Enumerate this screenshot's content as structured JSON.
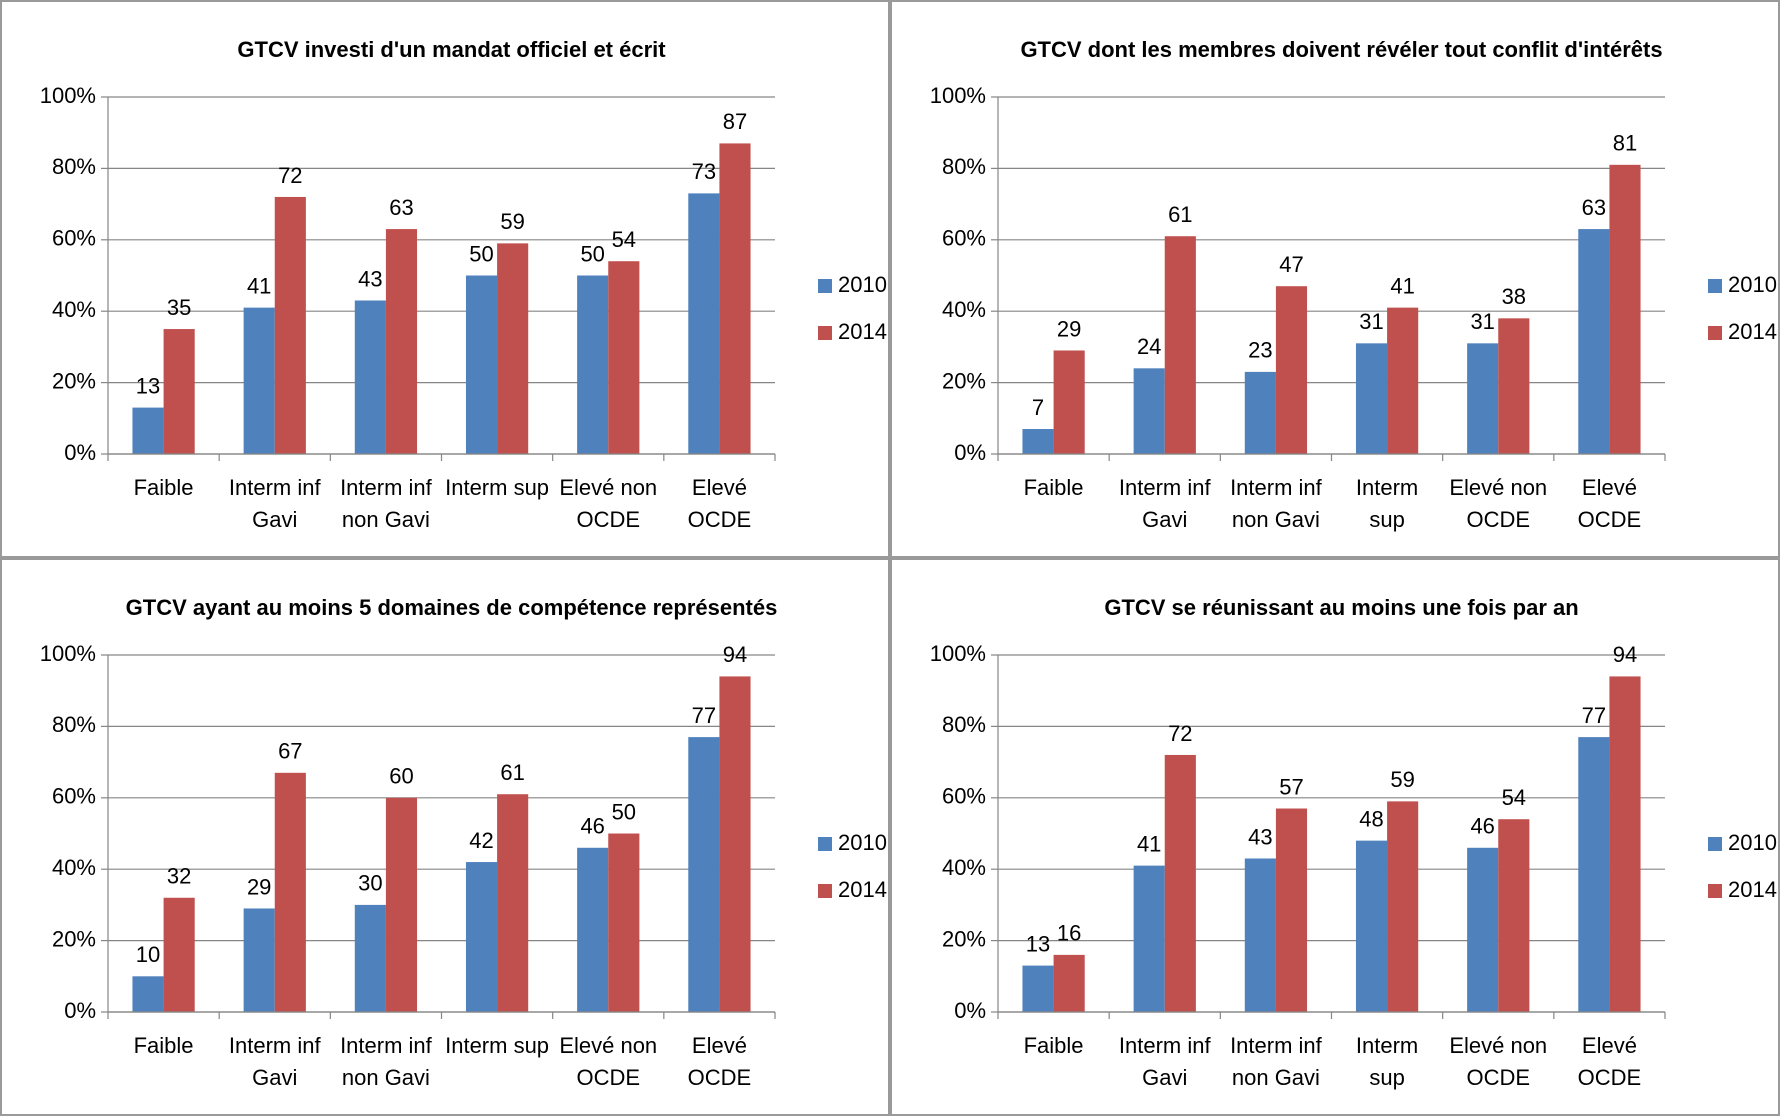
{
  "chart_data": [
    {
      "type": "bar",
      "title": "GTCV investi d'un mandat officiel et écrit",
      "categories": [
        [
          "Faible"
        ],
        [
          "Interm inf",
          "Gavi"
        ],
        [
          "Interm inf",
          "non Gavi"
        ],
        [
          "Interm sup"
        ],
        [
          "Elevé non",
          "OCDE"
        ],
        [
          "Elevé",
          "OCDE"
        ]
      ],
      "series": [
        {
          "name": "2010",
          "color": "#4f81bd",
          "values": [
            13,
            41,
            43,
            50,
            50,
            73
          ]
        },
        {
          "name": "2014",
          "color": "#c0504d",
          "values": [
            35,
            72,
            63,
            59,
            54,
            87
          ]
        }
      ],
      "ylim": [
        0,
        100
      ],
      "yticks": [
        {
          "value": 0,
          "label": "0%"
        },
        {
          "value": 20,
          "label": "20%"
        },
        {
          "value": 40,
          "label": "40%"
        },
        {
          "value": 60,
          "label": "60%"
        },
        {
          "value": 80,
          "label": "80%"
        },
        {
          "value": 100,
          "label": "100%"
        }
      ],
      "grid": true,
      "legend": "right"
    },
    {
      "type": "bar",
      "title": "GTCV dont les membres doivent révéler tout conflit d'intérêts",
      "categories": [
        [
          "Faible"
        ],
        [
          "Interm inf",
          "Gavi"
        ],
        [
          "Interm inf",
          "non Gavi"
        ],
        [
          "Interm",
          "sup"
        ],
        [
          "Elevé non",
          "OCDE"
        ],
        [
          "Elevé",
          "OCDE"
        ]
      ],
      "series": [
        {
          "name": "2010",
          "color": "#4f81bd",
          "values": [
            7,
            24,
            23,
            31,
            31,
            63
          ]
        },
        {
          "name": "2014",
          "color": "#c0504d",
          "values": [
            29,
            61,
            47,
            41,
            38,
            81
          ]
        }
      ],
      "ylim": [
        0,
        100
      ],
      "yticks": [
        {
          "value": 0,
          "label": "0%"
        },
        {
          "value": 20,
          "label": "20%"
        },
        {
          "value": 40,
          "label": "40%"
        },
        {
          "value": 60,
          "label": "60%"
        },
        {
          "value": 80,
          "label": "80%"
        },
        {
          "value": 100,
          "label": "100%"
        }
      ],
      "grid": true,
      "legend": "right"
    },
    {
      "type": "bar",
      "title": "GTCV ayant au moins 5 domaines de compétence représentés",
      "categories": [
        [
          "Faible"
        ],
        [
          "Interm inf",
          "Gavi"
        ],
        [
          "Interm inf",
          "non Gavi"
        ],
        [
          "Interm sup"
        ],
        [
          "Elevé non",
          "OCDE"
        ],
        [
          "Elevé",
          "OCDE"
        ]
      ],
      "series": [
        {
          "name": "2010",
          "color": "#4f81bd",
          "values": [
            10,
            29,
            30,
            42,
            46,
            77
          ]
        },
        {
          "name": "2014",
          "color": "#c0504d",
          "values": [
            32,
            67,
            60,
            61,
            50,
            94
          ]
        }
      ],
      "ylim": [
        0,
        100
      ],
      "yticks": [
        {
          "value": 0,
          "label": "0%"
        },
        {
          "value": 20,
          "label": "20%"
        },
        {
          "value": 40,
          "label": "40%"
        },
        {
          "value": 60,
          "label": "60%"
        },
        {
          "value": 80,
          "label": "80%"
        },
        {
          "value": 100,
          "label": "100%"
        }
      ],
      "grid": true,
      "legend": "right"
    },
    {
      "type": "bar",
      "title": "GTCV se réunissant au moins une fois par an",
      "categories": [
        [
          "Faible"
        ],
        [
          "Interm inf",
          "Gavi"
        ],
        [
          "Interm inf",
          "non Gavi"
        ],
        [
          "Interm",
          "sup"
        ],
        [
          "Elevé non",
          "OCDE"
        ],
        [
          "Elevé",
          "OCDE"
        ]
      ],
      "series": [
        {
          "name": "2010",
          "color": "#4f81bd",
          "values": [
            13,
            41,
            43,
            48,
            46,
            77
          ]
        },
        {
          "name": "2014",
          "color": "#c0504d",
          "values": [
            16,
            72,
            57,
            59,
            54,
            94
          ]
        }
      ],
      "ylim": [
        0,
        100
      ],
      "yticks": [
        {
          "value": 0,
          "label": "0%"
        },
        {
          "value": 20,
          "label": "20%"
        },
        {
          "value": 40,
          "label": "40%"
        },
        {
          "value": 60,
          "label": "60%"
        },
        {
          "value": 80,
          "label": "80%"
        },
        {
          "value": 100,
          "label": "100%"
        }
      ],
      "grid": true,
      "legend": "right"
    }
  ]
}
